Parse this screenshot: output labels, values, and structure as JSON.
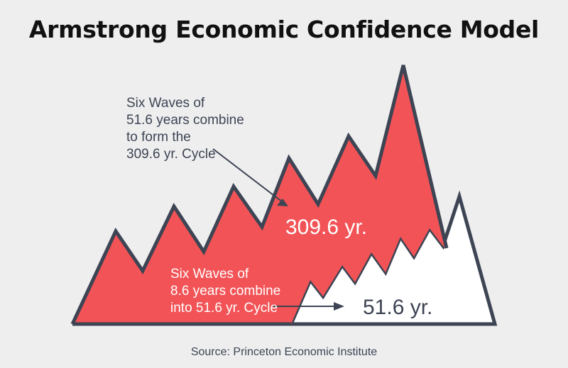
{
  "title": "Armstrong Economic Confidence Model",
  "annotations": {
    "top_note": [
      "Six Waves of",
      "51.6 years combine",
      "to form the",
      "309.6 yr. Cycle"
    ],
    "bottom_note": [
      "Six Waves of",
      "8.6 years combine",
      "into 51.6 yr. Cycle"
    ]
  },
  "labels": {
    "big_cycle": "309.6 yr.",
    "small_cycle": "51.6 yr."
  },
  "source": "Source: Princeton Economic Institute",
  "colors": {
    "background": "#eeeeef",
    "red_fill": "#f25356",
    "white_fill": "#ffffff",
    "outline": "#3d4453",
    "label_text": "#3d4453"
  }
}
